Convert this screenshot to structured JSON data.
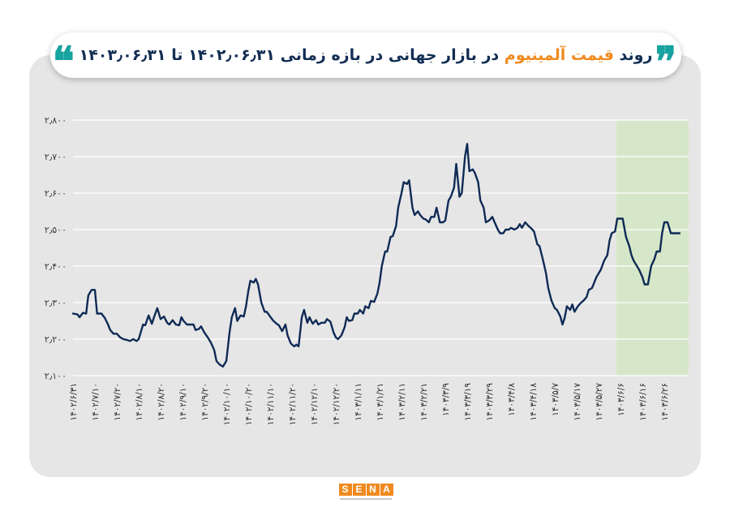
{
  "title": {
    "part1": "روند",
    "part2": "قیمت آلمینیوم",
    "part3": "در بازار جهانی",
    "part4": "در بازه زمانی ۱۴۰۲٫۰۶٫۳۱ تا ۱۴۰۳٫۰۶٫۳۱",
    "quote_open": "❞",
    "quote_close": "❝"
  },
  "logo": {
    "letters": [
      "S",
      "E",
      "N",
      "A"
    ]
  },
  "colors": {
    "line": "#0e2a55",
    "panel": "#e6e6e6",
    "highlight": "#d5e7c8",
    "grid": "#ffffff",
    "accent": "#f08a1e",
    "quote": "#17a3a0"
  },
  "chart_data": {
    "type": "line",
    "title": "روند قیمت آلمینیوم در بازار جهانی در بازه زمانی ۱۴۰۲٫۰۶٫۳۱ تا ۱۴۰۳٫۰۶٫۳۱",
    "ylim": [
      2100,
      2800
    ],
    "yticks": [
      2100,
      2200,
      2300,
      2400,
      2500,
      2600,
      2700,
      2800
    ],
    "ytick_labels": [
      "۲٫۱۰۰",
      "۲٫۲۰۰",
      "۲٫۳۰۰",
      "۲٫۴۰۰",
      "۲٫۵۰۰",
      "۲٫۶۰۰",
      "۲٫۷۰۰",
      "۲٫۸۰۰"
    ],
    "grid": "horizontal",
    "xtick_labels": [
      "۱۴۰۲/۶/۳۱",
      "۱۴۰۲/۷/۱۰",
      "۱۴۰۲/۷/۲۰",
      "۱۴۰۲/۸/۱۰",
      "۱۴۰۲/۸/۲۰",
      "۱۴۰۲/۹/۱۰",
      "۱۴۰۲/۹/۲۰",
      "۱۴۰۲/۱۰/۱۰",
      "۱۴۰۲/۱۰/۲۰",
      "۱۴۰۲/۱۱/۱۰",
      "۱۴۰۲/۱۱/۲۰",
      "۱۴۰۲/۱۲/۱۰",
      "۱۴۰۲/۱۲/۲۰",
      "۱۴۰۳/۱/۱۱",
      "۱۴۰۳/۱/۲۱",
      "۱۴۰۳/۲/۱۱",
      "۱۴۰۳/۲/۲۱",
      "۱۴۰۳/۳/۹",
      "۱۴۰۳/۳/۱۹",
      "۱۴۰۳/۳/۲۹",
      "۱۴۰۳/۴/۸",
      "۱۴۰۳/۴/۱۸",
      "۱۴۰۳/۵/۷",
      "۱۴۰۳/۵/۱۷",
      "۱۴۰۳/۵/۲۷",
      "۱۴۰۳/۶/۶",
      "۱۴۰۳/۶/۱۶",
      "۱۴۰۳/۶/۲۶"
    ],
    "highlight_start_index": 25,
    "x_index_max": 27.7,
    "series": [
      {
        "points": [
          [
            0,
            2270
          ],
          [
            0.2,
            2268
          ],
          [
            0.3,
            2260
          ],
          [
            0.45,
            2272
          ],
          [
            0.6,
            2270
          ],
          [
            0.7,
            2320
          ],
          [
            0.85,
            2335
          ],
          [
            1.0,
            2335
          ],
          [
            1.1,
            2270
          ],
          [
            1.3,
            2270
          ],
          [
            1.45,
            2258
          ],
          [
            1.6,
            2240
          ],
          [
            1.7,
            2225
          ],
          [
            1.85,
            2215
          ],
          [
            2.0,
            2215
          ],
          [
            2.15,
            2205
          ],
          [
            2.3,
            2200
          ],
          [
            2.45,
            2198
          ],
          [
            2.6,
            2195
          ],
          [
            2.75,
            2200
          ],
          [
            2.9,
            2195
          ],
          [
            3.0,
            2200
          ],
          [
            3.2,
            2240
          ],
          [
            3.3,
            2238
          ],
          [
            3.45,
            2265
          ],
          [
            3.6,
            2242
          ],
          [
            3.7,
            2260
          ],
          [
            3.85,
            2285
          ],
          [
            4.0,
            2255
          ],
          [
            4.15,
            2262
          ],
          [
            4.3,
            2245
          ],
          [
            4.4,
            2240
          ],
          [
            4.55,
            2252
          ],
          [
            4.7,
            2240
          ],
          [
            4.85,
            2238
          ],
          [
            4.95,
            2260
          ],
          [
            5.05,
            2250
          ],
          [
            5.2,
            2240
          ],
          [
            5.35,
            2240
          ],
          [
            5.5,
            2240
          ],
          [
            5.6,
            2225
          ],
          [
            5.75,
            2228
          ],
          [
            5.85,
            2235
          ],
          [
            6.0,
            2218
          ],
          [
            6.15,
            2205
          ],
          [
            6.3,
            2190
          ],
          [
            6.45,
            2170
          ],
          [
            6.55,
            2140
          ],
          [
            6.7,
            2130
          ],
          [
            6.85,
            2125
          ],
          [
            7.0,
            2140
          ],
          [
            7.15,
            2220
          ],
          [
            7.25,
            2260
          ],
          [
            7.4,
            2285
          ],
          [
            7.5,
            2250
          ],
          [
            7.65,
            2265
          ],
          [
            7.8,
            2262
          ],
          [
            7.9,
            2290
          ],
          [
            8.0,
            2330
          ],
          [
            8.1,
            2360
          ],
          [
            8.25,
            2355
          ],
          [
            8.35,
            2365
          ],
          [
            8.45,
            2350
          ],
          [
            8.6,
            2300
          ],
          [
            8.75,
            2275
          ],
          [
            8.85,
            2275
          ],
          [
            9.0,
            2262
          ],
          [
            9.15,
            2250
          ],
          [
            9.3,
            2242
          ],
          [
            9.4,
            2238
          ],
          [
            9.55,
            2222
          ],
          [
            9.7,
            2240
          ],
          [
            9.8,
            2210
          ],
          [
            9.95,
            2188
          ],
          [
            10.1,
            2180
          ],
          [
            10.2,
            2185
          ],
          [
            10.3,
            2180
          ],
          [
            10.45,
            2260
          ],
          [
            10.55,
            2280
          ],
          [
            10.7,
            2245
          ],
          [
            10.8,
            2260
          ],
          [
            10.95,
            2242
          ],
          [
            11.1,
            2252
          ],
          [
            11.2,
            2240
          ],
          [
            11.35,
            2245
          ],
          [
            11.5,
            2245
          ],
          [
            11.6,
            2255
          ],
          [
            11.75,
            2248
          ],
          [
            11.9,
            2218
          ],
          [
            12.0,
            2205
          ],
          [
            12.1,
            2200
          ],
          [
            12.25,
            2210
          ],
          [
            12.4,
            2232
          ],
          [
            12.5,
            2260
          ],
          [
            12.6,
            2250
          ],
          [
            12.75,
            2252
          ],
          [
            12.85,
            2270
          ],
          [
            13.0,
            2270
          ],
          [
            13.1,
            2280
          ],
          [
            13.25,
            2270
          ],
          [
            13.35,
            2290
          ],
          [
            13.5,
            2285
          ],
          [
            13.6,
            2305
          ],
          [
            13.75,
            2302
          ],
          [
            13.9,
            2325
          ],
          [
            14.0,
            2355
          ],
          [
            14.1,
            2400
          ],
          [
            14.25,
            2440
          ],
          [
            14.35,
            2440
          ],
          [
            14.5,
            2480
          ],
          [
            14.6,
            2482
          ],
          [
            14.75,
            2510
          ],
          [
            14.85,
            2560
          ],
          [
            15.0,
            2600
          ],
          [
            15.1,
            2630
          ],
          [
            15.25,
            2625
          ],
          [
            15.35,
            2635
          ],
          [
            15.5,
            2560
          ],
          [
            15.6,
            2540
          ],
          [
            15.75,
            2550
          ],
          [
            15.85,
            2540
          ],
          [
            16.0,
            2530
          ],
          [
            16.1,
            2528
          ],
          [
            16.25,
            2520
          ],
          [
            16.35,
            2535
          ],
          [
            16.5,
            2535
          ],
          [
            16.6,
            2560
          ],
          [
            16.75,
            2520
          ],
          [
            16.9,
            2520
          ],
          [
            17.0,
            2525
          ],
          [
            17.15,
            2580
          ],
          [
            17.25,
            2590
          ],
          [
            17.4,
            2615
          ],
          [
            17.5,
            2680
          ],
          [
            17.65,
            2590
          ],
          [
            17.75,
            2600
          ],
          [
            17.9,
            2700
          ],
          [
            18.0,
            2735
          ],
          [
            18.1,
            2660
          ],
          [
            18.25,
            2665
          ],
          [
            18.35,
            2655
          ],
          [
            18.5,
            2630
          ],
          [
            18.6,
            2580
          ],
          [
            18.75,
            2560
          ],
          [
            18.85,
            2520
          ],
          [
            19.0,
            2525
          ],
          [
            19.15,
            2535
          ],
          [
            19.25,
            2520
          ],
          [
            19.4,
            2500
          ],
          [
            19.5,
            2490
          ],
          [
            19.65,
            2490
          ],
          [
            19.75,
            2500
          ],
          [
            19.9,
            2500
          ],
          [
            20.0,
            2505
          ],
          [
            20.15,
            2500
          ],
          [
            20.3,
            2505
          ],
          [
            20.4,
            2515
          ],
          [
            20.5,
            2505
          ],
          [
            20.65,
            2520
          ],
          [
            20.8,
            2510
          ],
          [
            20.9,
            2505
          ],
          [
            21.05,
            2495
          ],
          [
            21.2,
            2460
          ],
          [
            21.3,
            2455
          ],
          [
            21.45,
            2420
          ],
          [
            21.6,
            2380
          ],
          [
            21.7,
            2340
          ],
          [
            21.85,
            2305
          ],
          [
            22.0,
            2285
          ],
          [
            22.1,
            2280
          ],
          [
            22.25,
            2262
          ],
          [
            22.35,
            2240
          ],
          [
            22.45,
            2258
          ],
          [
            22.55,
            2290
          ],
          [
            22.7,
            2280
          ],
          [
            22.8,
            2295
          ],
          [
            22.9,
            2275
          ],
          [
            23.05,
            2290
          ],
          [
            23.2,
            2300
          ],
          [
            23.3,
            2305
          ],
          [
            23.45,
            2315
          ],
          [
            23.55,
            2335
          ],
          [
            23.7,
            2340
          ],
          [
            23.8,
            2355
          ],
          [
            23.9,
            2370
          ],
          [
            24.0,
            2380
          ],
          [
            24.1,
            2390
          ],
          [
            24.25,
            2415
          ],
          [
            24.4,
            2430
          ],
          [
            24.5,
            2470
          ],
          [
            24.6,
            2490
          ],
          [
            24.75,
            2495
          ],
          [
            24.85,
            2530
          ],
          [
            25.0,
            2530
          ],
          [
            25.1,
            2530
          ],
          [
            25.25,
            2480
          ],
          [
            25.4,
            2455
          ],
          [
            25.5,
            2430
          ],
          [
            25.6,
            2415
          ],
          [
            25.75,
            2400
          ],
          [
            25.85,
            2390
          ],
          [
            26.0,
            2370
          ],
          [
            26.1,
            2350
          ],
          [
            26.25,
            2350
          ],
          [
            26.4,
            2400
          ],
          [
            26.55,
            2420
          ],
          [
            26.65,
            2440
          ],
          [
            26.8,
            2440
          ],
          [
            26.9,
            2490
          ],
          [
            27.0,
            2520
          ],
          [
            27.15,
            2520
          ],
          [
            27.3,
            2490
          ],
          [
            27.4,
            2490
          ],
          [
            27.55,
            2490
          ],
          [
            27.7,
            2490
          ]
        ]
      }
    ]
  }
}
